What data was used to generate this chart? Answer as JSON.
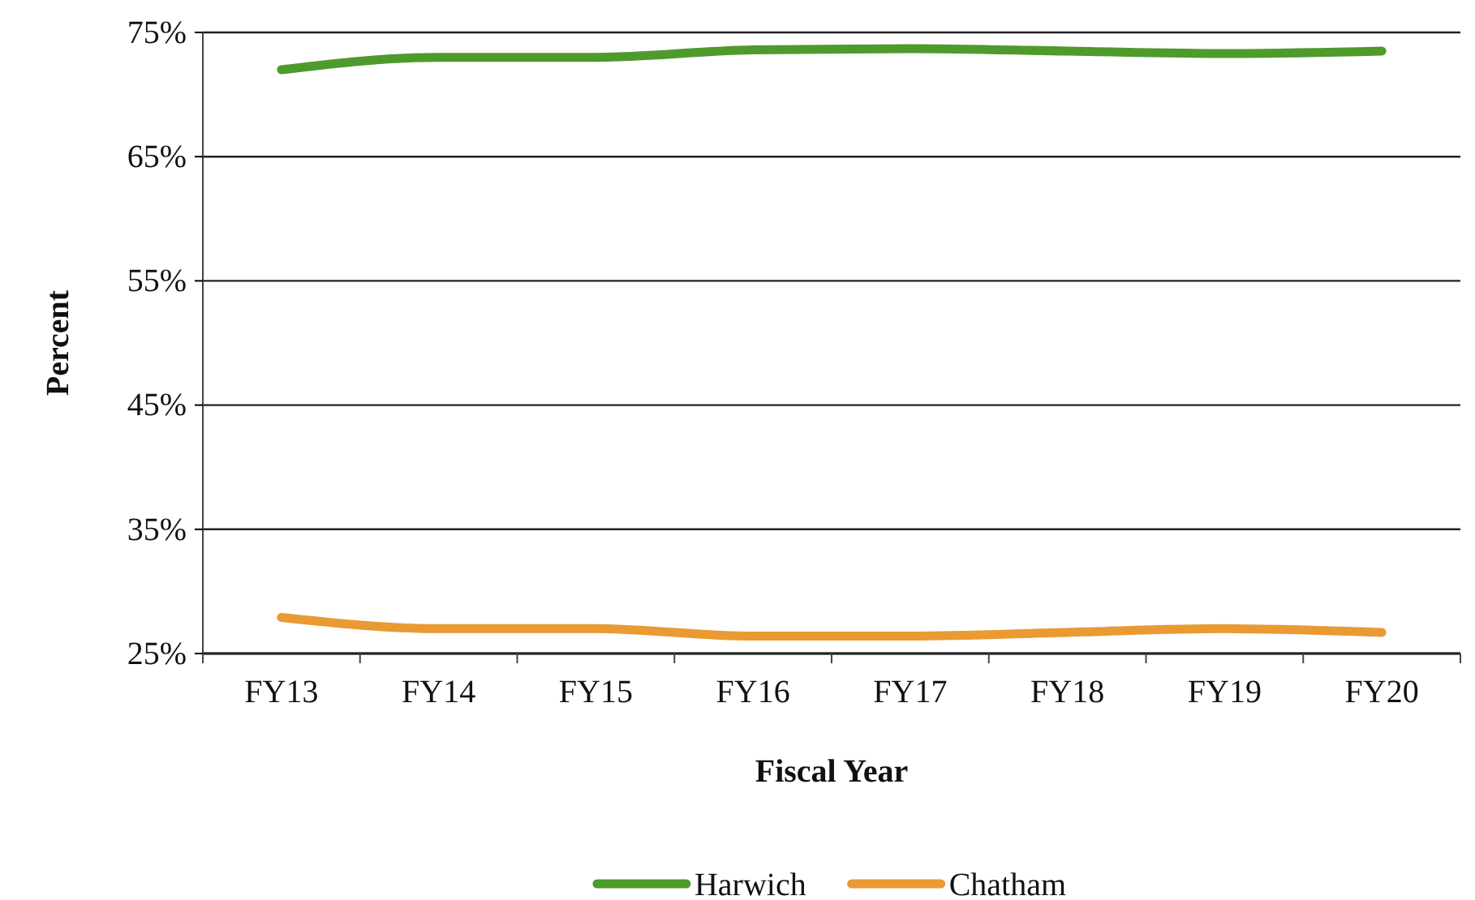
{
  "chart_data": {
    "type": "line",
    "xlabel": "Fiscal Year",
    "ylabel": "Percent",
    "categories": [
      "FY13",
      "FY14",
      "FY15",
      "FY16",
      "FY17",
      "FY18",
      "FY19",
      "FY20"
    ],
    "series": [
      {
        "name": "Harwich",
        "color": "#4f9a2c",
        "values": [
          72.0,
          73.0,
          73.0,
          73.6,
          73.7,
          73.5,
          73.3,
          73.5
        ]
      },
      {
        "name": "Chatham",
        "color": "#e99a33",
        "values": [
          27.9,
          27.0,
          27.0,
          26.4,
          26.4,
          26.7,
          27.0,
          26.7
        ]
      }
    ],
    "ylim": [
      25,
      75
    ],
    "yticks": [
      {
        "value": 25,
        "label": "25%"
      },
      {
        "value": 35,
        "label": "35%"
      },
      {
        "value": 45,
        "label": "45%"
      },
      {
        "value": 55,
        "label": "55%"
      },
      {
        "value": 65,
        "label": "65%"
      },
      {
        "value": 75,
        "label": "75%"
      }
    ],
    "grid": "y",
    "legend": "bottom",
    "marker": "none",
    "line_style": "solid"
  }
}
